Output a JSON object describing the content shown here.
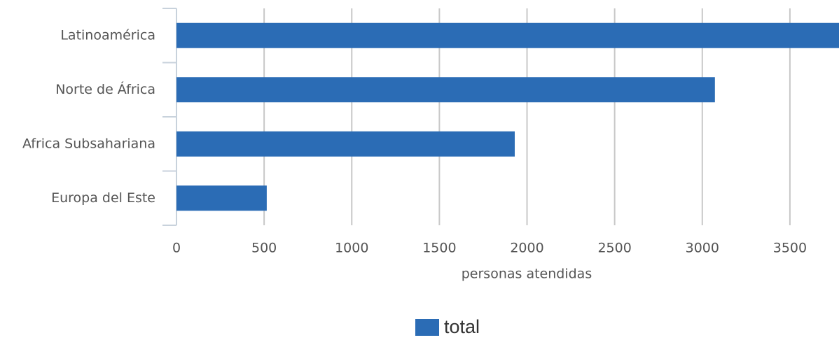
{
  "chart_data": {
    "type": "bar",
    "orientation": "horizontal",
    "categories": [
      "Latinoamérica",
      "Norte de África",
      "Africa Subsahariana",
      "Europa del Este"
    ],
    "series": [
      {
        "name": "total",
        "color": "#2b6cb5",
        "values": [
          3780,
          3072,
          1930,
          515
        ]
      }
    ],
    "xlabel": "personas atendidas",
    "xlim": [
      0,
      3780
    ],
    "xticks": [
      0,
      500,
      1000,
      1500,
      2000,
      2500,
      3000,
      3500
    ],
    "grid": true,
    "legend": "bottom"
  }
}
